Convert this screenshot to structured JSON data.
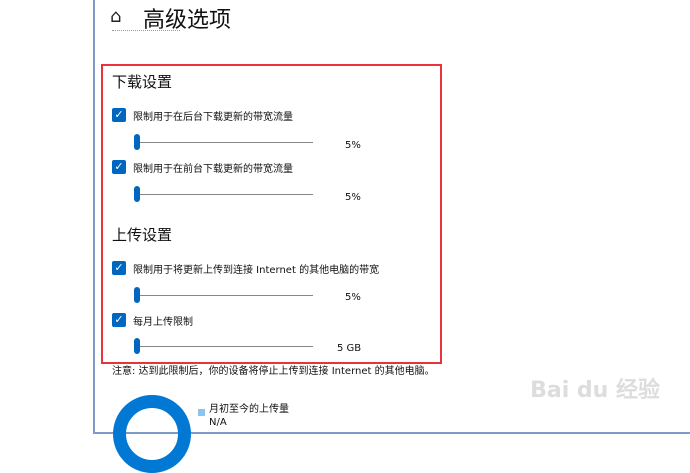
{
  "header": {
    "title": "高级选项",
    "home_icon": "home-icon"
  },
  "download": {
    "heading": "下载设置",
    "items": [
      {
        "label": "限制用于在后台下载更新的带宽流量",
        "checked": true,
        "value": "5%",
        "percent": 5
      },
      {
        "label": "限制用于在前台下载更新的带宽流量",
        "checked": true,
        "value": "5%",
        "percent": 5
      }
    ]
  },
  "upload": {
    "heading": "上传设置",
    "items": [
      {
        "label": "限制用于将更新上传到连接 Internet 的其他电脑的带宽",
        "checked": true,
        "value": "5%",
        "percent": 5
      },
      {
        "label": "每月上传限制",
        "checked": true,
        "value": "5 GB",
        "percent": 0
      }
    ]
  },
  "note": "注意: 达到此限制后，你的设备将停止上传到连接 Internet 的其他电脑。",
  "usage": {
    "legend": "月初至今的上传量",
    "value": "N/A"
  },
  "watermark": "Baidu经验 jingyan.baidu.com",
  "colors": {
    "accent": "#0067c0",
    "highlight": "#e8333a"
  }
}
